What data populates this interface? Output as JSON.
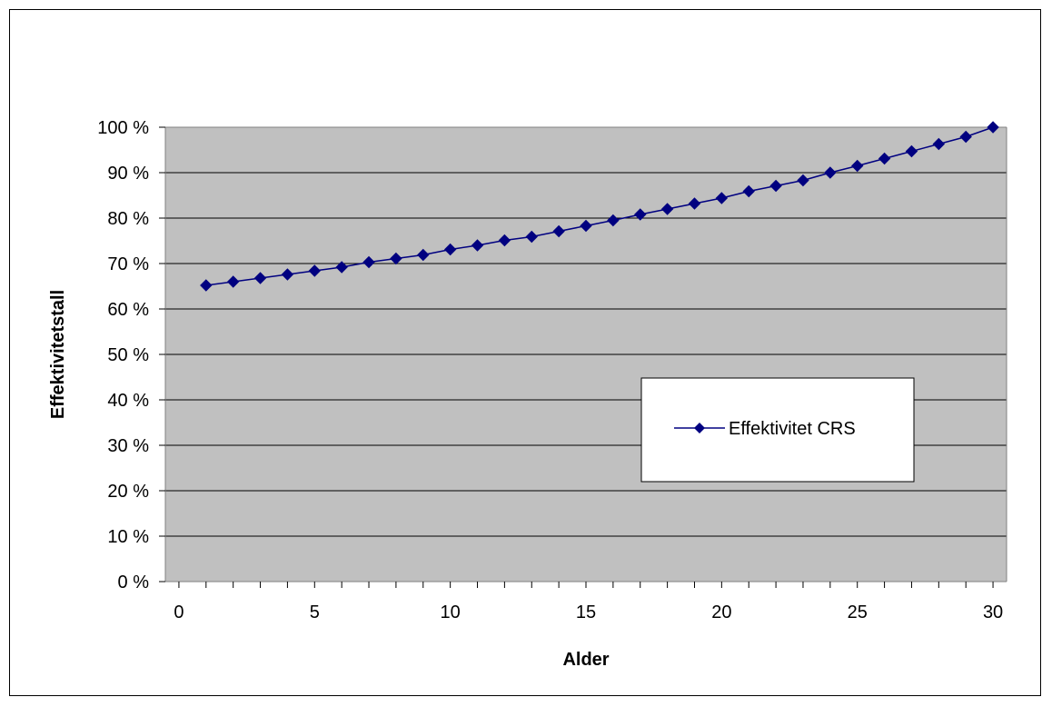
{
  "chart_data": {
    "type": "line",
    "xlabel": "Alder",
    "ylabel": "Effektivitetstall",
    "xlim": [
      -0.5,
      30.5
    ],
    "ylim": [
      0,
      100
    ],
    "x_ticks": [
      0,
      5,
      10,
      15,
      20,
      25,
      30
    ],
    "y_ticks": [
      0,
      10,
      20,
      30,
      40,
      50,
      60,
      70,
      80,
      90,
      100
    ],
    "y_tick_labels": [
      "0 %",
      "10 %",
      "20 %",
      "30 %",
      "40 %",
      "50 %",
      "60 %",
      "70 %",
      "80 %",
      "90 %",
      "100 %"
    ],
    "grid": "horizontal",
    "legend_position": "center-right",
    "x": [
      1,
      2,
      3,
      4,
      5,
      6,
      7,
      8,
      9,
      10,
      11,
      12,
      13,
      14,
      15,
      16,
      17,
      18,
      19,
      20,
      21,
      22,
      23,
      24,
      25,
      26,
      27,
      28,
      29,
      30
    ],
    "series": [
      {
        "name": "Effektivitet CRS",
        "color": "#000080",
        "marker": "diamond",
        "values": [
          65.2,
          66.0,
          66.8,
          67.6,
          68.4,
          69.2,
          70.3,
          71.1,
          71.9,
          73.1,
          74.0,
          75.1,
          75.9,
          77.1,
          78.3,
          79.5,
          80.8,
          82.0,
          83.2,
          84.4,
          85.9,
          87.1,
          88.3,
          90.0,
          91.5,
          93.1,
          94.7,
          96.3,
          97.9,
          100.0
        ]
      }
    ],
    "plot_background": "#c0c0c0"
  }
}
